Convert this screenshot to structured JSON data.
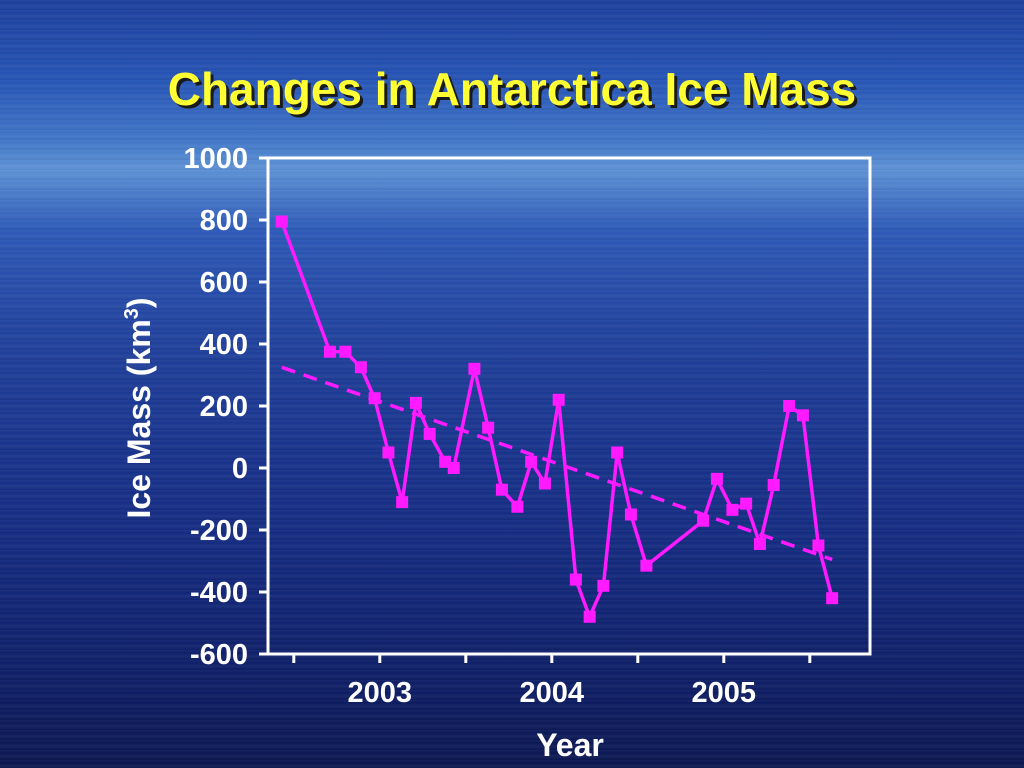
{
  "title": "Changes in Antarctica Ice Mass",
  "colors": {
    "title": "#ffff33",
    "series": "#ff1aff",
    "axes": "#ffffff"
  },
  "chart_data": {
    "type": "line",
    "xlabel": "Year",
    "ylabel_main": "Ice Mass (km",
    "ylabel_sup": "3",
    "ylabel_close": ")",
    "xlim": [
      2002.35,
      2005.85
    ],
    "ylim": [
      -600,
      1000
    ],
    "yticks": [
      1000,
      800,
      600,
      400,
      200,
      0,
      -200,
      -400,
      -600
    ],
    "ytick_labels": [
      "1000",
      "800",
      "600",
      "400",
      "200",
      "0",
      "-200",
      "-400",
      "-600"
    ],
    "xticks": [
      2003,
      2004,
      2005
    ],
    "xtick_labels": [
      "2003",
      "2004",
      "2005"
    ],
    "x_minor_ticks": [
      2002.5,
      2003.5,
      2004.5,
      2005.5
    ],
    "grid": false,
    "series": [
      {
        "style": "line-with-square-markers",
        "x": [
          2002.43,
          2002.71,
          2002.8,
          2002.89,
          2002.97,
          2003.05,
          2003.13,
          2003.21,
          2003.29,
          2003.38,
          2003.43,
          2003.55,
          2003.63,
          2003.71,
          2003.8,
          2003.88,
          2003.96,
          2004.04,
          2004.14,
          2004.22,
          2004.3,
          2004.38,
          2004.46,
          2004.55,
          2004.88,
          2004.96,
          2005.05,
          2005.13,
          2005.21,
          2005.29,
          2005.38,
          2005.46,
          2005.55,
          2005.63
        ],
        "y": [
          795,
          375,
          375,
          325,
          225,
          50,
          -110,
          210,
          110,
          20,
          0,
          320,
          130,
          -70,
          -125,
          20,
          -50,
          220,
          -360,
          -480,
          -380,
          50,
          -150,
          -315,
          -170,
          -35,
          -135,
          -115,
          -245,
          -55,
          200,
          170,
          -250,
          -420
        ]
      },
      {
        "style": "dashed-trend",
        "x": [
          2002.43,
          2005.63
        ],
        "y": [
          325,
          -295
        ]
      }
    ]
  }
}
